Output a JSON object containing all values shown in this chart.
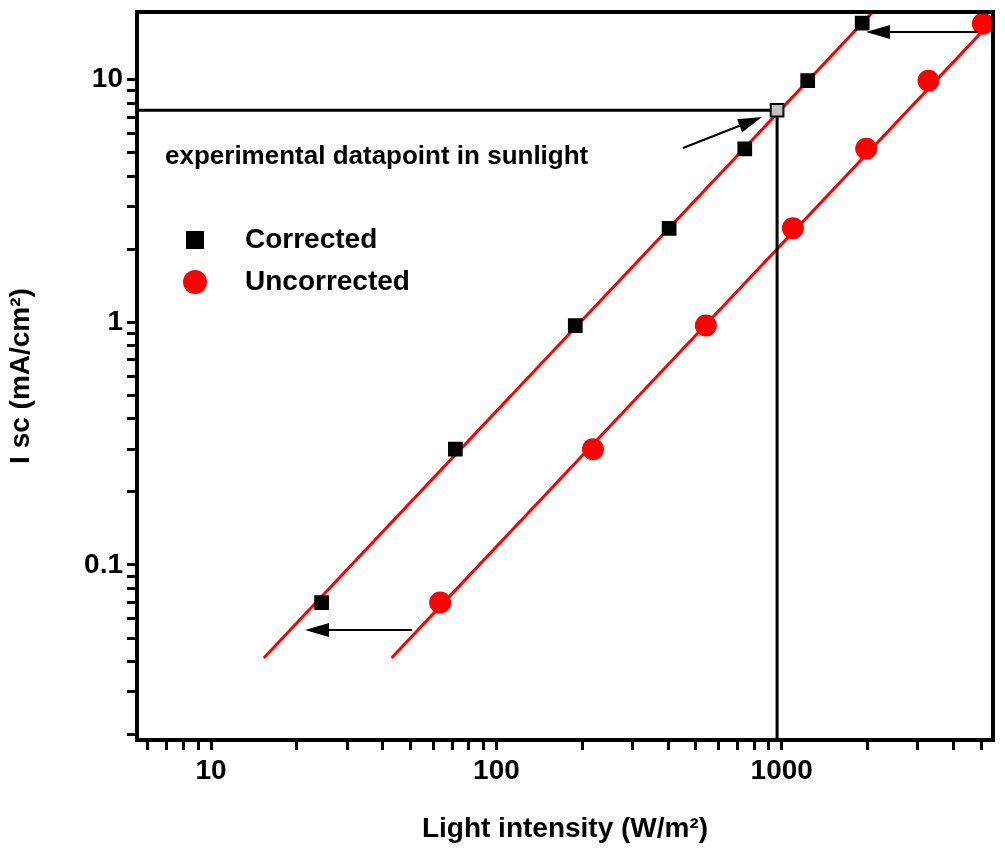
{
  "chart_data": {
    "type": "scatter",
    "xlabel": "Light intensity (W/m²)",
    "ylabel": "I sc (mA/cm²)",
    "log": "xy",
    "legend": "top left",
    "xlim": [
      5.5,
      5500
    ],
    "ylim": [
      0.019,
      19
    ],
    "xticks": [
      {
        "value": 6,
        "label": null
      },
      {
        "value": 7,
        "label": null
      },
      {
        "value": 8,
        "label": null
      },
      {
        "value": 9,
        "label": null
      },
      10,
      {
        "value": 20,
        "label": null
      },
      {
        "value": 30,
        "label": null
      },
      {
        "value": 40,
        "label": null
      },
      {
        "value": 50,
        "label": null
      },
      {
        "value": 60,
        "label": null
      },
      {
        "value": 70,
        "label": null
      },
      {
        "value": 80,
        "label": null
      },
      {
        "value": 90,
        "label": null
      },
      100,
      {
        "value": 200,
        "label": null
      },
      {
        "value": 300,
        "label": null
      },
      {
        "value": 400,
        "label": null
      },
      {
        "value": 500,
        "label": null
      },
      {
        "value": 600,
        "label": null
      },
      {
        "value": 700,
        "label": null
      },
      {
        "value": 800,
        "label": null
      },
      {
        "value": 900,
        "label": null
      },
      1000,
      {
        "value": 2000,
        "label": null
      },
      {
        "value": 3000,
        "label": null
      },
      {
        "value": 4000,
        "label": null
      },
      {
        "value": 5000,
        "label": null
      }
    ],
    "yticks": [
      {
        "value": 0.02,
        "label": null
      },
      {
        "value": 0.03,
        "label": null
      },
      {
        "value": 0.04,
        "label": null
      },
      {
        "value": 0.05,
        "label": null
      },
      {
        "value": 0.06,
        "label": null
      },
      {
        "value": 0.07,
        "label": null
      },
      {
        "value": 0.08,
        "label": null
      },
      {
        "value": 0.09,
        "label": null
      },
      0.1,
      {
        "value": 0.2,
        "label": null
      },
      {
        "value": 0.3,
        "label": null
      },
      {
        "value": 0.4,
        "label": null
      },
      {
        "value": 0.5,
        "label": null
      },
      {
        "value": 0.6,
        "label": null
      },
      {
        "value": 0.7,
        "label": null
      },
      {
        "value": 0.8,
        "label": null
      },
      {
        "value": 0.9,
        "label": null
      },
      1,
      {
        "value": 2,
        "label": null
      },
      {
        "value": 3,
        "label": null
      },
      {
        "value": 4,
        "label": null
      },
      {
        "value": 5,
        "label": null
      },
      {
        "value": 6,
        "label": null
      },
      {
        "value": 7,
        "label": null
      },
      {
        "value": 8,
        "label": null
      },
      {
        "value": 9,
        "label": null
      },
      10
    ],
    "annotations": [
      "experimental datapoint in sunlight"
    ],
    "series": [
      {
        "type": "line",
        "color": "#000000",
        "marker": "none",
        "x": [
          5.5,
          963,
          963
        ],
        "values": [
          7.48,
          7.48,
          0.019
        ]
      },
      {
        "type": "line",
        "color": "#ff0000",
        "marker": "none",
        "x": [
          15.3,
          2084
        ],
        "values": [
          0.0414,
          19
        ]
      },
      {
        "type": "line",
        "color": "#ff0000",
        "marker": "none",
        "x": [
          42.9,
          5500
        ],
        "values": [
          0.0414,
          17.6
        ]
      },
      {
        "name": "Corrected",
        "type": "scatter",
        "color": "#000000",
        "marker": "square",
        "x": [
          24.4,
          71.8,
          189,
          403,
          742,
          1233,
          1914
        ],
        "values": [
          0.07,
          0.3,
          0.97,
          2.44,
          5.19,
          9.9,
          17.1
        ]
      },
      {
        "name": "Uncorrected",
        "type": "scatter",
        "color": "#ff0000",
        "marker": "circle",
        "x": [
          63.5,
          218,
          542,
          1094,
          1977,
          3268,
          5070
        ],
        "values": [
          0.07,
          0.3,
          0.97,
          2.44,
          5.19,
          9.9,
          17
        ]
      },
      {
        "type": "scatter",
        "color": "#c0c0c0",
        "marker": "square",
        "x": [
          963
        ],
        "values": [
          7.48
        ]
      }
    ]
  }
}
